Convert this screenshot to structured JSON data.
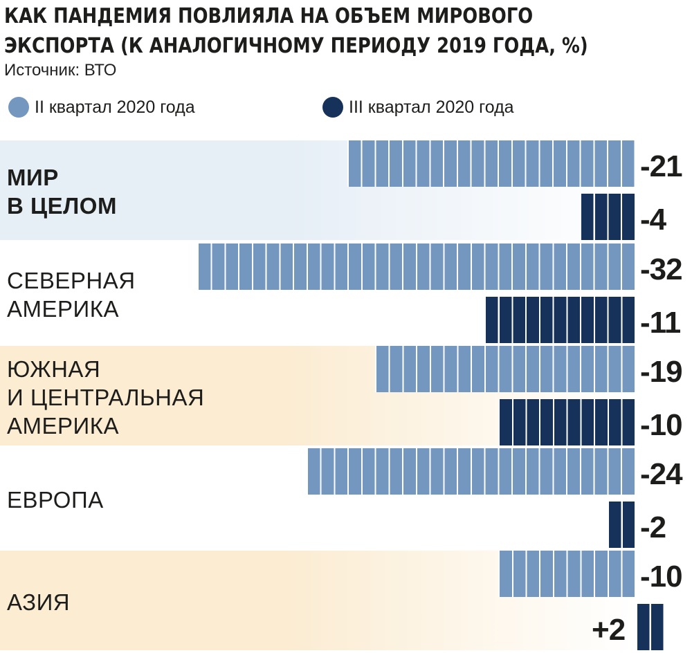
{
  "title_lines": [
    "КАК ПАНДЕМИЯ ПОВЛИЯЛА НА ОБЪЕМ МИРОВОГО",
    "ЭКСПОРТА (К АНАЛОГИЧНОМУ ПЕРИОДУ 2019 ГОДА, %)"
  ],
  "source": "Источник: ВТО",
  "colors": {
    "q2": "#7497bf",
    "q3": "#17325a",
    "band_world": "#e6eef6",
    "band_warm": "#fbecd2",
    "segment_line": "#ffffff"
  },
  "chart_data": {
    "type": "bar",
    "orientation": "horizontal",
    "title": "КАК ПАНДЕМИЯ ПОВЛИЯЛА НА ОБЪЕМ МИРОВОГО ЭКСПОРТА (К АНАЛОГИЧНОМУ ПЕРИОДУ 2019 ГОДА, %)",
    "source": "Источник: ВТО",
    "legend_position": "top",
    "series": [
      {
        "name": "II квартал 2020 года",
        "color": "#7497bf",
        "values": [
          -21,
          -32,
          -19,
          -24,
          -10
        ],
        "labels": [
          "-21",
          "-32",
          "-19",
          "-24",
          "-10"
        ]
      },
      {
        "name": "III квартал 2020 года",
        "color": "#17325a",
        "values": [
          -4,
          -11,
          -10,
          -2,
          2
        ],
        "labels": [
          "-4",
          "-11",
          "-10",
          "-2",
          "+2"
        ]
      }
    ],
    "categories": [
      {
        "lines": [
          "МИР",
          "В ЦЕЛОМ"
        ],
        "bold": true,
        "band": "world"
      },
      {
        "lines": [
          "СЕВЕРНАЯ",
          "АМЕРИКА"
        ],
        "bold": false,
        "band": "none"
      },
      {
        "lines": [
          "ЮЖНАЯ",
          "И ЦЕНТРАЛЬНАЯ",
          "АМЕРИКА"
        ],
        "bold": false,
        "band": "warm"
      },
      {
        "lines": [
          "ЕВРОПА"
        ],
        "bold": false,
        "band": "none"
      },
      {
        "lines": [
          "АЗИЯ"
        ],
        "bold": false,
        "band": "warm"
      }
    ]
  }
}
